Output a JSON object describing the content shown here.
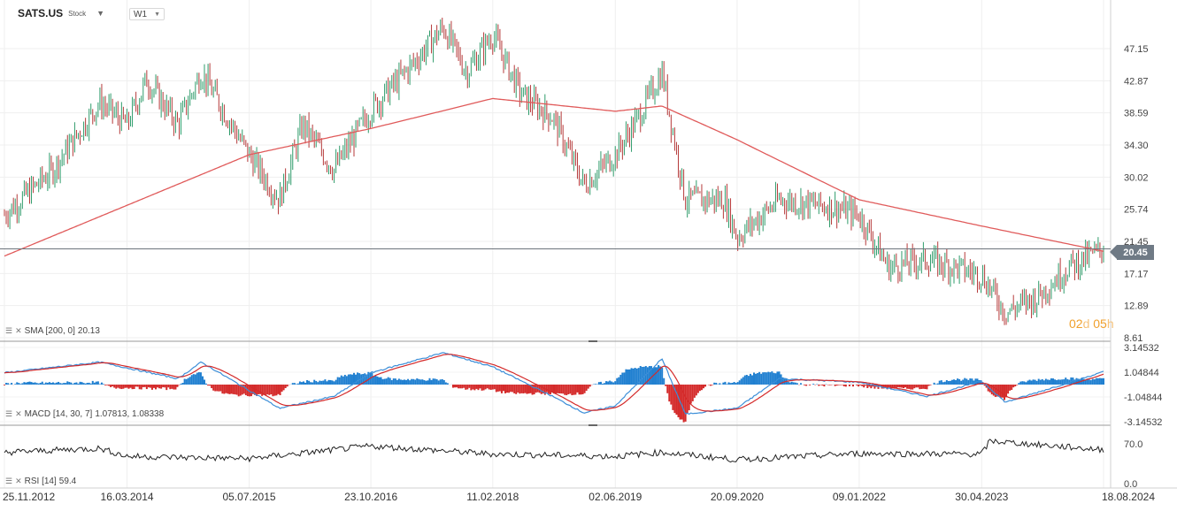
{
  "header": {
    "symbol": "SATS.US",
    "kind": "Stock",
    "dropdown_icon": "caret-down-icon",
    "timeframe": "W1",
    "timeframe_icon": "caret-down-icon"
  },
  "last_price": "20.45",
  "countdown": {
    "days": "02",
    "d": "d",
    "hours": "05",
    "h": "h"
  },
  "indicators": {
    "sma": {
      "label": "SMA [200,  0]",
      "value": "20.13"
    },
    "macd": {
      "label": "MACD [14,  30,  7]",
      "value": "1.07813,  1.08338"
    },
    "rsi": {
      "label": "RSI [14]",
      "value": "59.4"
    }
  },
  "colors": {
    "bull": "#2e9b6a",
    "bear": "#b53a3a",
    "sma": "#e05a5a",
    "macd_pos": "#1f7fd0",
    "macd_neg": "#d42a2a",
    "macd_line": "#3c8ed8",
    "signal_line": "#d42a2a",
    "rsi_line": "#222222",
    "accent": "#f0a02c"
  },
  "chart_data": [
    {
      "type": "candlestick",
      "title": "SATS.US Weekly",
      "x_ticks": [
        "25.11.2012",
        "16.03.2014",
        "05.07.2015",
        "23.10.2016",
        "11.02.2018",
        "02.06.2019",
        "20.09.2020",
        "09.01.2022",
        "30.04.2023",
        "18.08.2024"
      ],
      "y_ticks": [
        "47.15",
        "42.87",
        "38.59",
        "34.30",
        "30.02",
        "25.74",
        "21.45",
        "17.17",
        "12.89",
        "8.61"
      ],
      "ylim": [
        8.61,
        51.43
      ],
      "grid": true,
      "price_path": [
        {
          "date": "25.11.2012",
          "close": 25.0
        },
        {
          "date": "06.2013",
          "close": 31.0
        },
        {
          "date": "12.2013",
          "close": 40.0
        },
        {
          "date": "16.03.2014",
          "close": 37.0
        },
        {
          "date": "06.2014",
          "close": 43.0
        },
        {
          "date": "10.2014",
          "close": 37.0
        },
        {
          "date": "01.2015",
          "close": 44.0
        },
        {
          "date": "05.07.2015",
          "close": 33.0
        },
        {
          "date": "11.2015",
          "close": 27.0
        },
        {
          "date": "02.2016",
          "close": 37.0
        },
        {
          "date": "06.2016",
          "close": 31.0
        },
        {
          "date": "23.10.2016",
          "close": 39.0
        },
        {
          "date": "04.2017",
          "close": 45.0
        },
        {
          "date": "08.2017",
          "close": 50.0
        },
        {
          "date": "11.2017",
          "close": 44.0
        },
        {
          "date": "11.02.2018",
          "close": 49.0
        },
        {
          "date": "06.2018",
          "close": 41.0
        },
        {
          "date": "10.2018",
          "close": 38.0
        },
        {
          "date": "02.2019",
          "close": 29.0
        },
        {
          "date": "02.06.2019",
          "close": 33.0
        },
        {
          "date": "09.2019",
          "close": 38.0
        },
        {
          "date": "12.2019",
          "close": 44.0
        },
        {
          "date": "03.2020",
          "close": 27.0
        },
        {
          "date": "08.2020",
          "close": 27.0
        },
        {
          "date": "20.09.2020",
          "close": 22.0
        },
        {
          "date": "03.2021",
          "close": 27.0
        },
        {
          "date": "10.2021",
          "close": 26.0
        },
        {
          "date": "09.01.2022",
          "close": 25.0
        },
        {
          "date": "05.2022",
          "close": 18.0
        },
        {
          "date": "10.2022",
          "close": 19.0
        },
        {
          "date": "30.04.2023",
          "close": 17.0
        },
        {
          "date": "08.2023",
          "close": 12.0
        },
        {
          "date": "12.2023",
          "close": 14.0
        },
        {
          "date": "04.2024",
          "close": 18.0
        },
        {
          "date": "18.08.2024",
          "close": 20.45
        }
      ],
      "horizontal_line": 20.45,
      "sma": {
        "name": "SMA [200, 0]",
        "last": 20.13,
        "path": [
          {
            "date": "25.11.2012",
            "value": 19.5
          },
          {
            "date": "05.07.2015",
            "value": 33.0
          },
          {
            "date": "23.10.2016",
            "value": 36.5
          },
          {
            "date": "11.02.2018",
            "value": 40.5
          },
          {
            "date": "02.06.2019",
            "value": 38.8
          },
          {
            "date": "12.2019",
            "value": 39.5
          },
          {
            "date": "20.09.2020",
            "value": 35.0
          },
          {
            "date": "09.01.2022",
            "value": 27.0
          },
          {
            "date": "30.04.2023",
            "value": 23.5
          },
          {
            "date": "18.08.2024",
            "value": 20.13
          }
        ]
      }
    },
    {
      "type": "histogram+line",
      "title": "MACD [14, 30, 7]",
      "y_ticks": [
        "3.14532",
        "1.04844",
        "-1.04844",
        "-3.14532"
      ],
      "ylim": [
        -3.14532,
        3.14532
      ],
      "last": [
        1.07813,
        1.08338
      ],
      "macd_path": [
        {
          "date": "25.11.2012",
          "value": 1.0
        },
        {
          "date": "12.2013",
          "value": 1.9
        },
        {
          "date": "10.2014",
          "value": 0.5
        },
        {
          "date": "01.2015",
          "value": 1.9
        },
        {
          "date": "11.2015",
          "value": -2.0
        },
        {
          "date": "06.2016",
          "value": -1.0
        },
        {
          "date": "23.10.2016",
          "value": 1.0
        },
        {
          "date": "08.2017",
          "value": 2.7
        },
        {
          "date": "11.02.2018",
          "value": 1.5
        },
        {
          "date": "10.2018",
          "value": -1.0
        },
        {
          "date": "02.2019",
          "value": -2.4
        },
        {
          "date": "02.06.2019",
          "value": -1.8
        },
        {
          "date": "12.2019",
          "value": 2.2
        },
        {
          "date": "03.2020",
          "value": -2.5
        },
        {
          "date": "20.09.2020",
          "value": -2.0
        },
        {
          "date": "03.2021",
          "value": 0.5
        },
        {
          "date": "09.01.2022",
          "value": 0.2
        },
        {
          "date": "10.2022",
          "value": -1.0
        },
        {
          "date": "30.04.2023",
          "value": 0.3
        },
        {
          "date": "08.2023",
          "value": -1.5
        },
        {
          "date": "18.08.2024",
          "value": 1.08
        }
      ]
    },
    {
      "type": "line",
      "title": "RSI [14]",
      "y_ticks": [
        "70.0",
        "0.0"
      ],
      "ylim": [
        0,
        100
      ],
      "last": 59.4,
      "path": [
        {
          "date": "25.11.2012",
          "value": 55
        },
        {
          "date": "12.2013",
          "value": 62
        },
        {
          "date": "16.03.2014",
          "value": 48
        },
        {
          "date": "05.07.2015",
          "value": 44
        },
        {
          "date": "23.10.2016",
          "value": 66
        },
        {
          "date": "11.02.2018",
          "value": 52
        },
        {
          "date": "02.06.2019",
          "value": 48
        },
        {
          "date": "12.2019",
          "value": 55
        },
        {
          "date": "20.09.2020",
          "value": 42
        },
        {
          "date": "09.01.2022",
          "value": 53
        },
        {
          "date": "30.04.2023",
          "value": 52
        },
        {
          "date": "06.2023",
          "value": 75
        },
        {
          "date": "18.08.2024",
          "value": 59.4
        }
      ]
    }
  ]
}
